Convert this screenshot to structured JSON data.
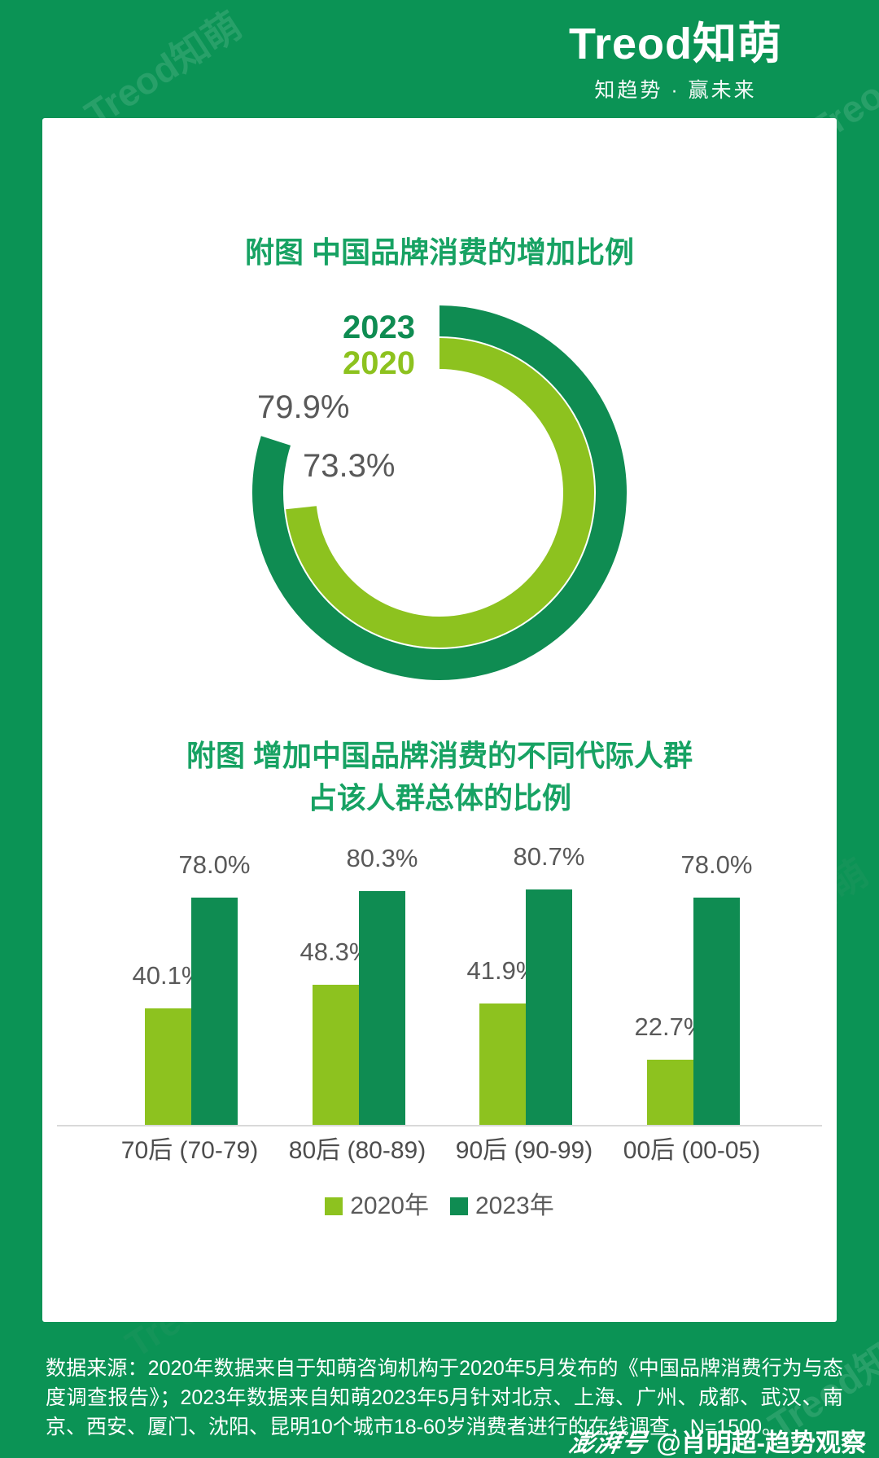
{
  "brand": {
    "logo": "Treod知萌",
    "tagline": "知趋势 · 赢未来",
    "watermark_text": "Treod知萌"
  },
  "colors": {
    "frame_green": "#0B9355",
    "dark_series_green": "#0F8C52",
    "light_series_green": "#8DC21F",
    "title_green": "#17A263",
    "label_gray": "#595959",
    "axis_gray": "#D9D9D9"
  },
  "chart_data": [
    {
      "type": "donut",
      "title": "附图 中国品牌消费的增加比例",
      "unit": "%",
      "start_angle": "12-oclock",
      "direction": "clockwise",
      "series": [
        {
          "name": "2023",
          "value": 79.9,
          "label": "79.9%",
          "color": "#0F8C52",
          "ring": "outer"
        },
        {
          "name": "2020",
          "value": 73.3,
          "label": "73.3%",
          "color": "#8DC21F",
          "ring": "inner"
        }
      ]
    },
    {
      "type": "bar",
      "title_line1": "附图 增加中国品牌消费的不同代际人群",
      "title_line2": "占该人群总体的比例",
      "unit": "%",
      "ylim": [
        0,
        100
      ],
      "grid": false,
      "legend_position": "bottom",
      "categories": [
        "70后 (70-79)",
        "80后 (80-89)",
        "90后 (90-99)",
        "00后 (00-05)"
      ],
      "series": [
        {
          "name": "2020年",
          "color": "#8DC21F",
          "values": [
            40.1,
            48.3,
            41.9,
            22.7
          ],
          "labels": [
            "40.1%",
            "48.3%",
            "41.9%",
            "22.7%"
          ]
        },
        {
          "name": "2023年",
          "color": "#0F8C52",
          "values": [
            78.0,
            80.3,
            80.7,
            78.0
          ],
          "labels": [
            "78.0%",
            "80.3%",
            "80.7%",
            "78.0%"
          ]
        }
      ]
    }
  ],
  "footer": {
    "source_text": "数据来源：2020年数据来自于知萌咨询机构于2020年5月发布的《中国品牌消费行为与态度调查报告》；2023年数据来自知萌2023年5月针对北京、上海、广州、成都、武汉、南京、西安、厦门、沈阳、昆明10个城市18-60岁消费者进行的在线调查，N=1500。"
  },
  "badge": {
    "logo": "澎湃号",
    "handle": "@肖明超-趋势观察"
  }
}
